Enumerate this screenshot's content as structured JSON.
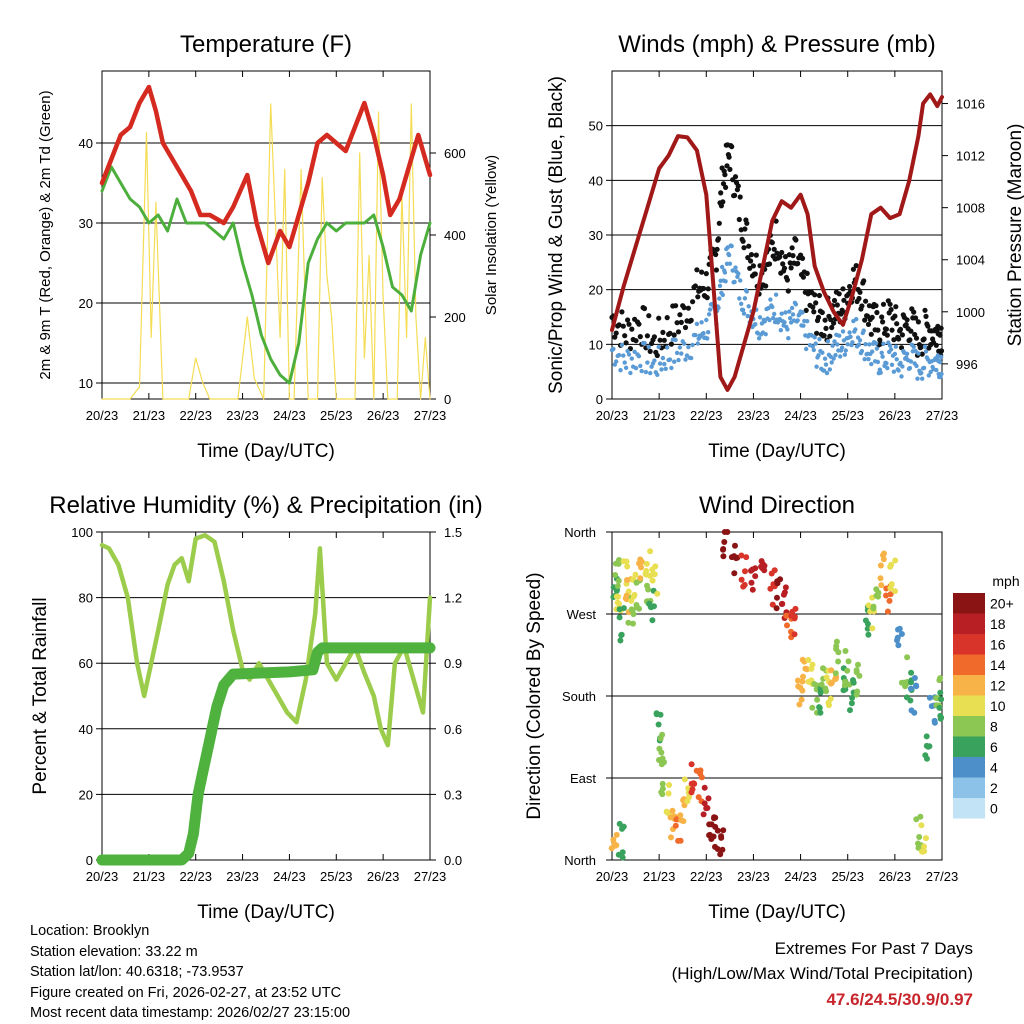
{
  "chart_data": [
    {
      "type": "line",
      "title": "Temperature (F)",
      "xlabel": "Time (Day/UTC)",
      "ylabel": "2m & 9m T (Red, Orange) & 2m Td (Green)",
      "y2label": "Solar Insolation (Yellow)",
      "categories": [
        "20/23",
        "21/23",
        "22/23",
        "23/23",
        "24/23",
        "25/23",
        "26/23",
        "27/23"
      ],
      "xlim": [
        0,
        7
      ],
      "ylim": [
        8,
        49
      ],
      "yticks": [
        10,
        20,
        30,
        40
      ],
      "y2lim": [
        0,
        800
      ],
      "y2ticks": [
        0,
        200,
        400,
        600
      ],
      "series": [
        {
          "name": "2m T",
          "color": "#d42a20",
          "x": [
            0,
            0.2,
            0.4,
            0.6,
            0.8,
            1.0,
            1.15,
            1.3,
            1.5,
            1.7,
            1.9,
            2.1,
            2.3,
            2.6,
            2.8,
            3.1,
            3.3,
            3.55,
            3.8,
            4.0,
            4.2,
            4.4,
            4.6,
            4.8,
            5.0,
            5.2,
            5.4,
            5.6,
            5.8,
            6.0,
            6.15,
            6.35,
            6.55,
            6.75,
            6.9,
            7.0
          ],
          "values": [
            35,
            38,
            41,
            42,
            45,
            47,
            44,
            40,
            38,
            36,
            34,
            31,
            31,
            30,
            32,
            36,
            30,
            25,
            29,
            27,
            31,
            35,
            40,
            41,
            40,
            39,
            42,
            45,
            41,
            36,
            31,
            33,
            37,
            41,
            38,
            36
          ]
        },
        {
          "name": "2m Td",
          "color": "#4caf3c",
          "x": [
            0,
            0.2,
            0.4,
            0.6,
            0.8,
            1.0,
            1.2,
            1.4,
            1.6,
            1.8,
            2.0,
            2.2,
            2.4,
            2.6,
            2.8,
            3.0,
            3.2,
            3.4,
            3.6,
            3.8,
            4.0,
            4.2,
            4.4,
            4.6,
            4.8,
            5.0,
            5.2,
            5.4,
            5.6,
            5.8,
            6.0,
            6.2,
            6.4,
            6.6,
            6.8,
            7.0
          ],
          "values": [
            34,
            37,
            35,
            33,
            32,
            30,
            31,
            29,
            33,
            30,
            30,
            30,
            29,
            28,
            30,
            25,
            21,
            16,
            13,
            11,
            10,
            15,
            25,
            28,
            30,
            29,
            30,
            30,
            30,
            31,
            27,
            22,
            21,
            19,
            26,
            30
          ]
        },
        {
          "name": "Solar Insolation",
          "color": "#f4dd55",
          "axis": "y2",
          "x": [
            0,
            0.6,
            0.8,
            0.95,
            1.05,
            1.15,
            1.3,
            1.6,
            1.85,
            2.0,
            2.15,
            2.3,
            2.9,
            3.1,
            3.25,
            3.45,
            3.6,
            3.8,
            3.9,
            4.0,
            4.1,
            4.25,
            4.4,
            4.6,
            4.7,
            4.8,
            4.9,
            5.0,
            5.2,
            5.4,
            5.5,
            5.6,
            5.7,
            5.8,
            5.9,
            6.0,
            6.1,
            6.2,
            6.3,
            6.4,
            6.5,
            6.6,
            6.7,
            6.8,
            6.9,
            7.0
          ],
          "values": [
            0,
            0,
            30,
            650,
            150,
            480,
            0,
            0,
            0,
            100,
            40,
            0,
            0,
            200,
            50,
            0,
            720,
            150,
            560,
            0,
            0,
            560,
            0,
            0,
            540,
            300,
            200,
            0,
            0,
            0,
            600,
            100,
            350,
            0,
            700,
            250,
            0,
            0,
            0,
            500,
            150,
            720,
            200,
            0,
            150,
            0
          ]
        }
      ]
    },
    {
      "type": "scatter",
      "title": "Winds (mph) & Pressure (mb)",
      "xlabel": "Time (Day/UTC)",
      "ylabel": "Sonic/Prop Wind & Gust (Blue, Black)",
      "y2label": "Station Pressure (Maroon)",
      "categories": [
        "20/23",
        "21/23",
        "22/23",
        "23/23",
        "24/23",
        "25/23",
        "26/23",
        "27/23"
      ],
      "xlim": [
        0,
        7
      ],
      "ylim": [
        0,
        60
      ],
      "yticks": [
        0,
        10,
        20,
        30,
        40,
        50
      ],
      "y2lim": [
        993.3,
        1018.5
      ],
      "y2ticks": [
        996,
        1000,
        1004,
        1008,
        1012,
        1016
      ],
      "series": [
        {
          "name": "Gust",
          "color": "#111111",
          "x": [
            0,
            0.3,
            0.6,
            0.9,
            1.2,
            1.5,
            1.8,
            2.0,
            2.2,
            2.35,
            2.5,
            2.7,
            2.9,
            3.1,
            3.3,
            3.5,
            3.7,
            3.9,
            4.1,
            4.3,
            4.5,
            4.7,
            4.9,
            5.1,
            5.3,
            5.5,
            5.7,
            5.9,
            6.1,
            6.3,
            6.5,
            6.7,
            6.9,
            7.0
          ],
          "values": [
            15,
            12,
            14,
            10,
            13,
            15,
            20,
            21,
            26,
            40,
            45,
            35,
            28,
            23,
            25,
            30,
            22,
            26,
            20,
            16,
            14,
            16,
            17,
            22,
            20,
            14,
            13,
            15,
            12,
            14,
            11,
            13,
            12,
            12
          ]
        },
        {
          "name": "Wind",
          "color": "#5b9bd5",
          "x": [
            0,
            0.3,
            0.6,
            0.9,
            1.2,
            1.5,
            1.8,
            2.0,
            2.2,
            2.35,
            2.5,
            2.7,
            2.9,
            3.1,
            3.3,
            3.5,
            3.7,
            3.9,
            4.1,
            4.3,
            4.5,
            4.7,
            4.9,
            5.1,
            5.3,
            5.5,
            5.7,
            5.9,
            6.1,
            6.3,
            6.5,
            6.7,
            6.9,
            7.0
          ],
          "values": [
            9,
            7,
            8,
            6,
            8,
            9,
            11,
            13,
            16,
            22,
            27,
            20,
            17,
            14,
            15,
            17,
            13,
            15,
            12,
            9,
            7,
            9,
            10,
            13,
            11,
            8,
            7,
            8,
            6,
            8,
            6,
            7,
            7,
            7
          ]
        },
        {
          "name": "Station Pressure",
          "color": "#a01818",
          "axis": "y2",
          "x": [
            0,
            0.25,
            0.5,
            0.75,
            1.0,
            1.2,
            1.4,
            1.6,
            1.8,
            2.0,
            2.15,
            2.3,
            2.45,
            2.6,
            2.8,
            3.0,
            3.2,
            3.4,
            3.6,
            3.8,
            4.0,
            4.15,
            4.3,
            4.5,
            4.7,
            4.9,
            5.1,
            5.3,
            5.5,
            5.7,
            5.9,
            6.1,
            6.3,
            6.5,
            6.6,
            6.75,
            6.9,
            7.0
          ],
          "values": [
            998.6,
            1002,
            1005,
            1008,
            1011,
            1012,
            1013.5,
            1013.4,
            1012.4,
            1009,
            1002,
            995,
            994,
            995,
            997.5,
            1000,
            1003.5,
            1007,
            1008.5,
            1008,
            1009,
            1007.5,
            1003.5,
            1001.5,
            1000,
            999,
            1001.3,
            1004,
            1007.5,
            1008,
            1007.2,
            1007.5,
            1010,
            1013.5,
            1016,
            1016.7,
            1015.8,
            1016.5
          ]
        }
      ]
    },
    {
      "type": "line",
      "title": "Relative Humidity (%) & Precipitation (in)",
      "xlabel": "Time (Day/UTC)",
      "ylabel": "Percent & Total Rainfall",
      "categories": [
        "20/23",
        "21/23",
        "22/23",
        "23/23",
        "24/23",
        "25/23",
        "26/23",
        "27/23"
      ],
      "xlim": [
        0,
        7
      ],
      "ylim": [
        0,
        100
      ],
      "yticks": [
        0,
        20,
        40,
        60,
        80,
        100
      ],
      "y2lim": [
        0,
        1.5
      ],
      "y2ticks": [
        0.0,
        0.3,
        0.6,
        0.9,
        1.2,
        1.5
      ],
      "series": [
        {
          "name": "Relative Humidity",
          "color": "#9ccc4c",
          "x": [
            0,
            0.15,
            0.35,
            0.55,
            0.75,
            0.9,
            1.05,
            1.2,
            1.4,
            1.55,
            1.7,
            1.85,
            2.0,
            2.2,
            2.4,
            2.6,
            2.8,
            3.0,
            3.15,
            3.35,
            3.55,
            3.75,
            3.95,
            4.15,
            4.35,
            4.55,
            4.65,
            4.8,
            5.0,
            5.2,
            5.4,
            5.6,
            5.8,
            5.95,
            6.1,
            6.25,
            6.45,
            6.65,
            6.85,
            7.0
          ],
          "values": [
            96,
            95,
            90,
            80,
            60,
            50,
            60,
            70,
            84,
            90,
            92,
            85,
            98,
            99,
            97,
            85,
            70,
            58,
            55,
            60,
            55,
            50,
            45,
            42,
            55,
            75,
            95,
            60,
            55,
            60,
            65,
            57,
            50,
            40,
            35,
            60,
            65,
            55,
            45,
            80
          ]
        },
        {
          "name": "Total Rainfall",
          "color": "#4fb13e",
          "axis": "y2",
          "x": [
            0,
            1.7,
            1.85,
            1.95,
            2.05,
            2.15,
            2.3,
            2.45,
            2.6,
            2.8,
            4.0,
            4.5,
            4.6,
            4.7,
            5.0,
            6.0,
            7.0
          ],
          "values": [
            0,
            0,
            0.03,
            0.12,
            0.3,
            0.4,
            0.55,
            0.7,
            0.8,
            0.85,
            0.86,
            0.87,
            0.95,
            0.97,
            0.97,
            0.97,
            0.97
          ]
        }
      ]
    },
    {
      "type": "scatter",
      "title": "Wind Direction",
      "xlabel": "Time (Day/UTC)",
      "ylabel": "Direction (Colored By Speed)",
      "categories": [
        "20/23",
        "21/23",
        "22/23",
        "23/23",
        "24/23",
        "25/23",
        "26/23",
        "27/23"
      ],
      "xlim": [
        0,
        7
      ],
      "yticklabels": [
        "North",
        "East",
        "South",
        "West",
        "North"
      ],
      "ylim": [
        0,
        360
      ],
      "colorbar": {
        "title": "mph",
        "labels": [
          "0",
          "2",
          "4",
          "6",
          "8",
          "10",
          "12",
          "14",
          "16",
          "18",
          "20+"
        ],
        "colors": [
          "#c2e3f5",
          "#8cc2e8",
          "#4d90c9",
          "#39a35e",
          "#8cc653",
          "#e8df52",
          "#f8b348",
          "#f06a2b",
          "#d9342a",
          "#b81f24",
          "#8a1414"
        ]
      },
      "points": {
        "x": [
          0.05,
          0.1,
          0.15,
          0.2,
          0.3,
          0.35,
          0.4,
          0.45,
          0.55,
          0.6,
          0.75,
          0.8,
          0.85,
          0.9,
          0.05,
          0.2,
          1.0,
          1.05,
          1.1,
          1.2,
          1.3,
          1.4,
          1.5,
          1.6,
          1.7,
          1.85,
          2.0,
          2.1,
          2.2,
          2.3,
          2.4,
          2.6,
          2.8,
          3.0,
          3.2,
          3.4,
          3.55,
          3.65,
          3.75,
          3.85,
          4.0,
          4.1,
          4.2,
          4.3,
          4.4,
          4.5,
          4.6,
          4.7,
          4.8,
          4.9,
          5.0,
          5.1,
          5.2,
          5.4,
          5.5,
          5.6,
          5.75,
          5.85,
          5.95,
          6.1,
          6.2,
          6.3,
          6.4,
          6.5,
          6.6,
          6.7,
          6.8,
          6.9,
          7.0
        ],
        "dir": [
          300,
          320,
          280,
          260,
          310,
          290,
          270,
          300,
          290,
          320,
          330,
          300,
          280,
          310,
          10,
          20,
          150,
          120,
          90,
          70,
          40,
          30,
          60,
          80,
          90,
          80,
          60,
          40,
          30,
          20,
          350,
          330,
          320,
          310,
          310,
          300,
          290,
          280,
          250,
          260,
          190,
          200,
          210,
          180,
          180,
          200,
          190,
          210,
          220,
          200,
          210,
          180,
          200,
          260,
          270,
          290,
          320,
          290,
          310,
          250,
          210,
          190,
          180,
          30,
          20,
          120,
          160,
          180,
          170
        ],
        "speed": [
          6,
          7,
          10,
          5,
          9,
          12,
          7,
          10,
          8,
          12,
          10,
          7,
          6,
          10,
          12,
          6,
          6,
          7,
          8,
          10,
          12,
          14,
          12,
          10,
          16,
          14,
          18,
          20,
          20,
          20,
          20,
          20,
          16,
          18,
          18,
          16,
          20,
          18,
          14,
          16,
          12,
          12,
          10,
          8,
          6,
          8,
          10,
          12,
          8,
          6,
          8,
          6,
          8,
          6,
          10,
          8,
          12,
          14,
          10,
          4,
          8,
          6,
          4,
          8,
          10,
          6,
          4,
          8,
          6
        ]
      }
    }
  ],
  "info": {
    "location": "Location: Brooklyn",
    "elevation": "Station elevation: 33.22 m",
    "latlon": "Station lat/lon: 40.6318; -73.9537",
    "created": "Figure created on Fri, 2026-02-27, at 23:52 UTC",
    "recent": "Most recent data timestamp: 2026/02/27 23:15:00"
  },
  "extremes": {
    "title": "Extremes For Past 7 Days",
    "subtitle": "(High/Low/Max Wind/Total Precipitation)",
    "values": "47.6/24.5/30.9/0.97",
    "color": "#c8242c"
  }
}
